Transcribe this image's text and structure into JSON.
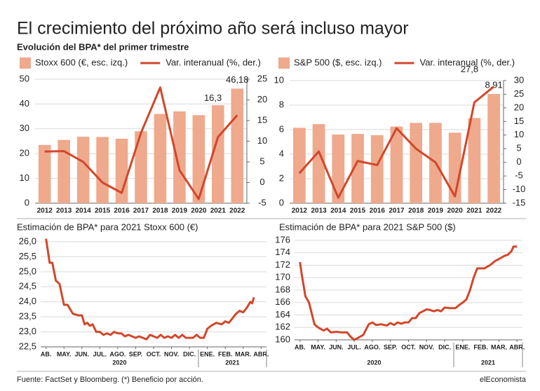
{
  "title": "El crecimiento del próximo año será incluso mayor",
  "subtitle": "Evolución del BPA* del primer trimestre",
  "footer": "Fuente: FactSet y Bloomberg. (*) Beneficio por acción.",
  "brand": "elEconomista",
  "chart_data": [
    {
      "type": "combo",
      "categories": [
        "2012",
        "2013",
        "2014",
        "2015",
        "2016",
        "2017",
        "2018",
        "2019",
        "2020",
        "2021",
        "2022"
      ],
      "series": [
        {
          "name": "Stoxx 600 (€, esc. izq.)",
          "type": "bar",
          "color": "#efa98c",
          "values": [
            23.5,
            25.5,
            26.8,
            26.7,
            26,
            29,
            36,
            37,
            35.5,
            39.5,
            46.18
          ],
          "value_labels": [
            null,
            null,
            null,
            null,
            null,
            null,
            null,
            null,
            null,
            null,
            "46,18"
          ]
        },
        {
          "name": "Var. interanual (%, der.)",
          "type": "line",
          "axis": "y2",
          "color": "#d1472b",
          "values": [
            7.5,
            7.6,
            5,
            0,
            -2.5,
            12,
            23,
            3,
            -4,
            11,
            16.3
          ],
          "value_labels": [
            null,
            null,
            null,
            null,
            null,
            null,
            null,
            null,
            null,
            null,
            "16,3"
          ]
        }
      ],
      "ylim": [
        0,
        50
      ],
      "yticks": [
        0,
        10,
        20,
        30,
        40,
        50
      ],
      "y2lim": [
        -5,
        25
      ],
      "y2ticks": [
        -5,
        0,
        5,
        10,
        15,
        20,
        25
      ],
      "grid": true
    },
    {
      "type": "combo",
      "categories": [
        "2012",
        "2013",
        "2014",
        "2015",
        "2016",
        "2017",
        "2018",
        "2019",
        "2020",
        "2021",
        "2022"
      ],
      "series": [
        {
          "name": "S&P 500 ($, esc. izq.)",
          "type": "bar",
          "color": "#efa98c",
          "values": [
            6.15,
            6.45,
            5.6,
            5.65,
            5.55,
            6.25,
            6.55,
            6.55,
            5.75,
            6.95,
            8.91
          ],
          "value_labels": [
            null,
            null,
            null,
            null,
            null,
            null,
            null,
            null,
            null,
            null,
            "8,91"
          ]
        },
        {
          "name": "Var. interanual (%, der.)",
          "type": "line",
          "axis": "y2",
          "color": "#d1472b",
          "values": [
            -4,
            4,
            -13,
            0.5,
            -1,
            12.5,
            5,
            0,
            -12.5,
            22,
            27.8
          ],
          "value_labels": [
            null,
            null,
            null,
            null,
            null,
            null,
            null,
            null,
            null,
            null,
            "27,8"
          ]
        }
      ],
      "ylim": [
        0,
        10
      ],
      "yticks": [
        0,
        2,
        4,
        6,
        8,
        10
      ],
      "y2lim": [
        -15,
        30
      ],
      "y2ticks": [
        -15,
        -10,
        -5,
        0,
        5,
        10,
        15,
        20,
        25,
        30
      ],
      "grid": true
    },
    {
      "type": "line",
      "title": "Estimación de BPA* para 2021 Stoxx 600 (€)",
      "color": "#d1472b",
      "x": [
        0,
        0.2,
        0.35,
        0.55,
        0.75,
        1.0,
        1.2,
        1.5,
        1.8,
        2.0,
        2.15,
        2.3,
        2.45,
        2.6,
        2.8,
        3.0,
        3.2,
        3.4,
        3.6,
        3.8,
        4.0,
        4.2,
        4.4,
        4.6,
        4.8,
        5.0,
        5.2,
        5.4,
        5.6,
        5.8,
        6.0,
        6.2,
        6.4,
        6.6,
        6.8,
        7.0,
        7.2,
        7.4,
        7.6,
        7.8,
        8.0,
        8.2,
        8.4,
        8.6,
        8.8,
        9.0,
        9.2,
        9.5,
        9.8,
        10.0,
        10.2,
        10.4,
        10.6,
        10.8,
        11.0,
        11.2,
        11.4,
        11.5,
        11.6
      ],
      "values": [
        26.1,
        25.3,
        25.3,
        24.7,
        24.6,
        23.9,
        23.9,
        23.6,
        23.55,
        23.55,
        23.25,
        23.3,
        23.2,
        23.25,
        23.0,
        23.0,
        22.9,
        22.95,
        22.9,
        23.0,
        22.95,
        22.95,
        22.85,
        22.9,
        22.85,
        22.8,
        22.85,
        22.8,
        22.75,
        22.9,
        22.85,
        22.8,
        22.9,
        22.8,
        22.85,
        22.8,
        22.9,
        22.8,
        22.9,
        22.8,
        22.8,
        22.8,
        22.9,
        22.8,
        22.8,
        23.1,
        23.2,
        23.3,
        23.25,
        23.35,
        23.3,
        23.45,
        23.6,
        23.7,
        23.65,
        23.8,
        24.0,
        23.95,
        24.15
      ],
      "xlim": [
        -0.3,
        12.3
      ],
      "xticks": [
        {
          "value": 0,
          "label": "AB."
        },
        {
          "value": 1,
          "label": "MAY."
        },
        {
          "value": 2,
          "label": "JUN."
        },
        {
          "value": 3,
          "label": "JUL."
        },
        {
          "value": 4,
          "label": "AGO."
        },
        {
          "value": 5,
          "label": "SEP."
        },
        {
          "value": 6,
          "label": "OCT."
        },
        {
          "value": 7,
          "label": "NOV."
        },
        {
          "value": 8,
          "label": "DIC."
        },
        {
          "value": 9,
          "label": "ENE."
        },
        {
          "value": 10,
          "label": "FEB."
        },
        {
          "value": 11,
          "label": "MAR."
        },
        {
          "value": 12,
          "label": "ABR."
        }
      ],
      "x_groups": [
        {
          "label": "2020",
          "range": [
            -0.3,
            8.5
          ]
        },
        {
          "label": "2021",
          "range": [
            8.5,
            12.3
          ]
        }
      ],
      "ylim": [
        22.5,
        26.0
      ],
      "yticks": [
        {
          "value": 22.5,
          "label": "22,5"
        },
        {
          "value": 23.0,
          "label": "23,0"
        },
        {
          "value": 23.5,
          "label": "23,5"
        },
        {
          "value": 24.0,
          "label": "24,0"
        },
        {
          "value": 24.5,
          "label": "24,5"
        },
        {
          "value": 25.0,
          "label": "25,0"
        },
        {
          "value": 25.5,
          "label": "25,5"
        },
        {
          "value": 26.0,
          "label": "26,0"
        }
      ],
      "grid": true
    },
    {
      "type": "line",
      "title": "Estimación de BPA* para 2021 S&P 500 ($)",
      "color": "#d1472b",
      "x": [
        0,
        0.1,
        0.3,
        0.5,
        0.8,
        1.0,
        1.3,
        1.5,
        1.7,
        2.0,
        2.3,
        2.6,
        2.8,
        3.0,
        3.2,
        3.5,
        3.8,
        4.0,
        4.2,
        4.5,
        4.8,
        5.0,
        5.2,
        5.4,
        5.6,
        5.8,
        6.0,
        6.2,
        6.4,
        6.6,
        6.8,
        7.0,
        7.2,
        7.4,
        7.6,
        7.8,
        8.0,
        8.3,
        8.6,
        8.8,
        9.0,
        9.2,
        9.4,
        9.6,
        9.8,
        10.0,
        10.2,
        10.5,
        10.8,
        11.0,
        11.3,
        11.5,
        11.7,
        11.8,
        12.0
      ],
      "values": [
        172.5,
        170.5,
        167,
        166,
        162.5,
        162,
        161.5,
        161.8,
        161.2,
        161.3,
        161.2,
        161.2,
        160.5,
        160,
        160.3,
        160.8,
        162.5,
        162.8,
        162.4,
        162.5,
        162.3,
        162.7,
        162.4,
        162.8,
        162.6,
        162.8,
        162.8,
        163.5,
        163.5,
        164.3,
        164.6,
        164.9,
        164.8,
        164.6,
        164.8,
        164.6,
        165.2,
        165.1,
        165.1,
        165.6,
        166,
        166.5,
        168,
        170,
        171.5,
        171.5,
        171.5,
        172,
        172.7,
        173,
        173.5,
        173.7,
        174.3,
        175,
        175
      ],
      "xlim": [
        -0.3,
        12.3
      ],
      "xticks": [
        {
          "value": 0,
          "label": "AB."
        },
        {
          "value": 1,
          "label": "MAY."
        },
        {
          "value": 2,
          "label": "JUN."
        },
        {
          "value": 3,
          "label": "JUL."
        },
        {
          "value": 4,
          "label": "AGO."
        },
        {
          "value": 5,
          "label": "SEP."
        },
        {
          "value": 6,
          "label": "OCT."
        },
        {
          "value": 7,
          "label": "NOV."
        },
        {
          "value": 8,
          "label": "DIC."
        },
        {
          "value": 9,
          "label": "ENE."
        },
        {
          "value": 10,
          "label": "FEB."
        },
        {
          "value": 11,
          "label": "MAR."
        },
        {
          "value": 12,
          "label": "ABR."
        }
      ],
      "x_groups": [
        {
          "label": "2020",
          "range": [
            -0.3,
            8.5
          ]
        },
        {
          "label": "2021",
          "range": [
            8.5,
            12.3
          ]
        }
      ],
      "ylim": [
        160,
        176
      ],
      "yticks": [
        160,
        162,
        164,
        166,
        168,
        170,
        172,
        174,
        176
      ],
      "grid": true
    }
  ]
}
